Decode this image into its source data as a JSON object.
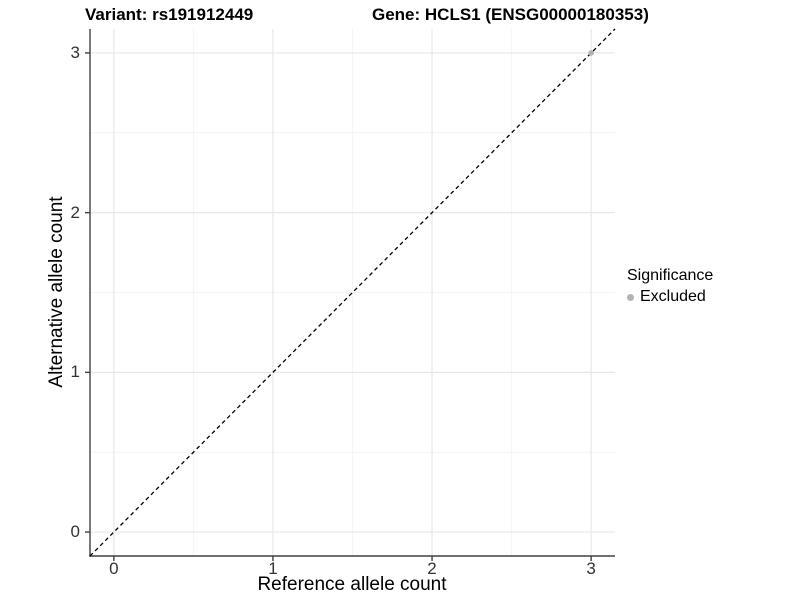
{
  "chart_data": {
    "type": "scatter",
    "title_left": "Variant: rs191912449",
    "title_right": "Gene: HCLS1 (ENSG00000180353)",
    "xlabel": "Reference allele count",
    "ylabel": "Alternative allele count",
    "xlim": [
      -0.15,
      3.15
    ],
    "ylim": [
      -0.15,
      3.15
    ],
    "x_major_ticks": [
      0,
      1,
      2,
      3
    ],
    "y_major_ticks": [
      0,
      1,
      2,
      3
    ],
    "x_minor_ticks": [
      0.5,
      1.5,
      2.5
    ],
    "y_minor_ticks": [
      0.5,
      1.5,
      2.5
    ],
    "grid": true,
    "series": [
      {
        "name": "Excluded",
        "color": "#b3b3b3",
        "points": [
          {
            "x": 3,
            "y": 3
          }
        ]
      }
    ],
    "reference_line": {
      "equation": "y = x",
      "style": "dashed",
      "color": "#000000",
      "from": [
        -0.15,
        -0.15
      ],
      "to": [
        3.15,
        3.15
      ]
    },
    "legend": {
      "title": "Significance",
      "position": "right",
      "entries": [
        {
          "label": "Excluded",
          "color": "#b3b3b3",
          "marker": "circle"
        }
      ]
    }
  },
  "colors": {
    "background": "#ffffff",
    "grid_major": "#e8e8e8",
    "grid_minor": "#f4f4f4",
    "axis": "#404040",
    "tick_label": "#333333"
  }
}
